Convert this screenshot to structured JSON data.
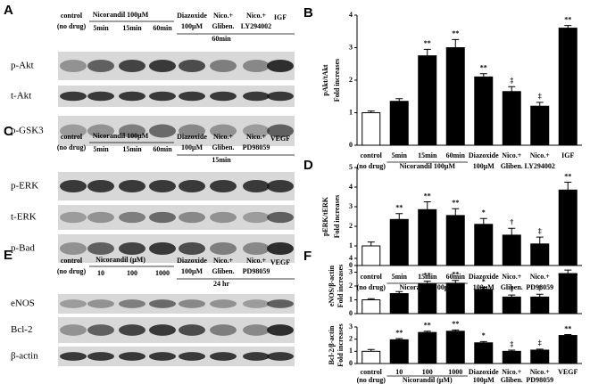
{
  "blots": [
    {
      "panel": "A",
      "labels": [
        "control",
        "(no drug)",
        "Nicorandil 100μM",
        "5min",
        "15min",
        "60min",
        "Diazoxide",
        "100μM",
        "Nico.+",
        "Gliben.",
        "Nico.+",
        "LY294002",
        "IGF",
        "60min"
      ],
      "rows": [
        "p-Akt",
        "t-Akt",
        "p-GSK3"
      ]
    },
    {
      "panel": "C",
      "labels": [
        "control",
        "(no drug)",
        "Nicorandil 100μM",
        "5min",
        "15min",
        "60min",
        "Diazoxide",
        "100μM",
        "Nico.+",
        "Gliben.",
        "Nico.+",
        "PD98059",
        "VEGF",
        "15min"
      ],
      "rows": [
        "p-ERK",
        "t-ERK",
        "p-Bad"
      ]
    },
    {
      "panel": "E",
      "labels": [
        "control",
        "(no drug)",
        "Nicorandil (μM)",
        "10",
        "100",
        "1000",
        "Diazoxide",
        "100μM",
        "Nico.+",
        "Gliben.",
        "Nico.+",
        "PD98059",
        "VEGF",
        "24 hr"
      ],
      "rows": [
        "eNOS",
        "Bcl-2",
        "β-actin"
      ]
    }
  ],
  "chart_data": [
    {
      "type": "bar",
      "panel": "B",
      "ylabel": "pAkt/tAkt",
      "ylabel2": "Fold increases",
      "categories": [
        "control",
        "5min",
        "15min",
        "60min",
        "Diazoxide",
        "Nico.+",
        "Nico.+",
        "IGF"
      ],
      "sublabels": [
        "(no drug)",
        null,
        null,
        null,
        "100μM",
        "Gliben.",
        "LY294002",
        null
      ],
      "group_label": "Nicorandil 100μM",
      "values": [
        1.0,
        1.35,
        2.75,
        3.0,
        2.1,
        1.65,
        1.2,
        3.6
      ],
      "errors": [
        0.05,
        0.08,
        0.2,
        0.25,
        0.1,
        0.15,
        0.12,
        0.08
      ],
      "annotations": [
        null,
        null,
        "**",
        "**",
        "**",
        "‡",
        "‡",
        "**"
      ],
      "colors": [
        "#ffffff",
        "#000000",
        "#000000",
        "#000000",
        "#000000",
        "#000000",
        "#000000",
        "#000000"
      ],
      "ylim": [
        0,
        4
      ],
      "yticks": [
        0,
        1,
        2,
        3,
        4
      ]
    },
    {
      "type": "bar",
      "panel": "D",
      "ylabel": "pERK/tERK",
      "ylabel2": "Fold increases",
      "categories": [
        "control",
        "5min",
        "15min",
        "60min",
        "Diazoxide",
        "Nico.+",
        "Nico.+",
        "VEGF"
      ],
      "sublabels": [
        "(no drug)",
        null,
        null,
        null,
        "100μM",
        "Gliben.",
        "PD98059",
        null
      ],
      "group_label": "Nicorandil 100μM",
      "values": [
        1.0,
        2.35,
        2.85,
        2.55,
        2.1,
        1.55,
        1.1,
        3.85
      ],
      "errors": [
        0.2,
        0.3,
        0.4,
        0.35,
        0.3,
        0.35,
        0.35,
        0.4
      ],
      "annotations": [
        null,
        "**",
        "**",
        "**",
        "*",
        "†",
        "‡",
        "**"
      ],
      "colors": [
        "#ffffff",
        "#000000",
        "#000000",
        "#000000",
        "#000000",
        "#000000",
        "#000000",
        "#000000"
      ],
      "ylim": [
        0,
        5
      ],
      "yticks": [
        0,
        1,
        2,
        3,
        4,
        5
      ]
    },
    {
      "type": "bar",
      "panel": "F",
      "ylabel": "eNOS/β-actin",
      "ylabel2": "Fold increases",
      "values": [
        1.0,
        1.45,
        2.15,
        2.2,
        1.75,
        1.2,
        1.2,
        2.9
      ],
      "errors": [
        0.08,
        0.15,
        0.2,
        0.2,
        0.15,
        0.15,
        0.2,
        0.25
      ],
      "annotations": [
        null,
        null,
        "**",
        "**",
        "*",
        "‡",
        "‡",
        "**"
      ],
      "colors": [
        "#ffffff",
        "#000000",
        "#000000",
        "#000000",
        "#000000",
        "#000000",
        "#000000",
        "#000000"
      ],
      "ylim": [
        0,
        4
      ],
      "yticks": [
        0,
        1,
        2,
        3,
        4
      ]
    },
    {
      "type": "bar",
      "ylabel": "Bcl-2/β-actin",
      "ylabel2": "Fold increases",
      "categories": [
        "control",
        "10",
        "100",
        "1000",
        "Diazoxide",
        "Nico.+",
        "Nico.+",
        "VEGF"
      ],
      "sublabels": [
        "(no drug)",
        null,
        null,
        null,
        "100μM",
        "Gliben.",
        "PD98059",
        null
      ],
      "group_label": "Nicorandil (μM)",
      "values": [
        1.0,
        1.95,
        2.55,
        2.65,
        1.7,
        1.0,
        1.1,
        2.3
      ],
      "errors": [
        0.15,
        0.1,
        0.1,
        0.1,
        0.1,
        0.1,
        0.08,
        0.08
      ],
      "annotations": [
        null,
        "**",
        "**",
        "**",
        "*",
        "‡",
        "‡",
        "**"
      ],
      "colors": [
        "#ffffff",
        "#000000",
        "#000000",
        "#000000",
        "#000000",
        "#000000",
        "#000000",
        "#000000"
      ],
      "ylim": [
        0,
        3
      ],
      "yticks": [
        0,
        1,
        2,
        3
      ]
    }
  ]
}
